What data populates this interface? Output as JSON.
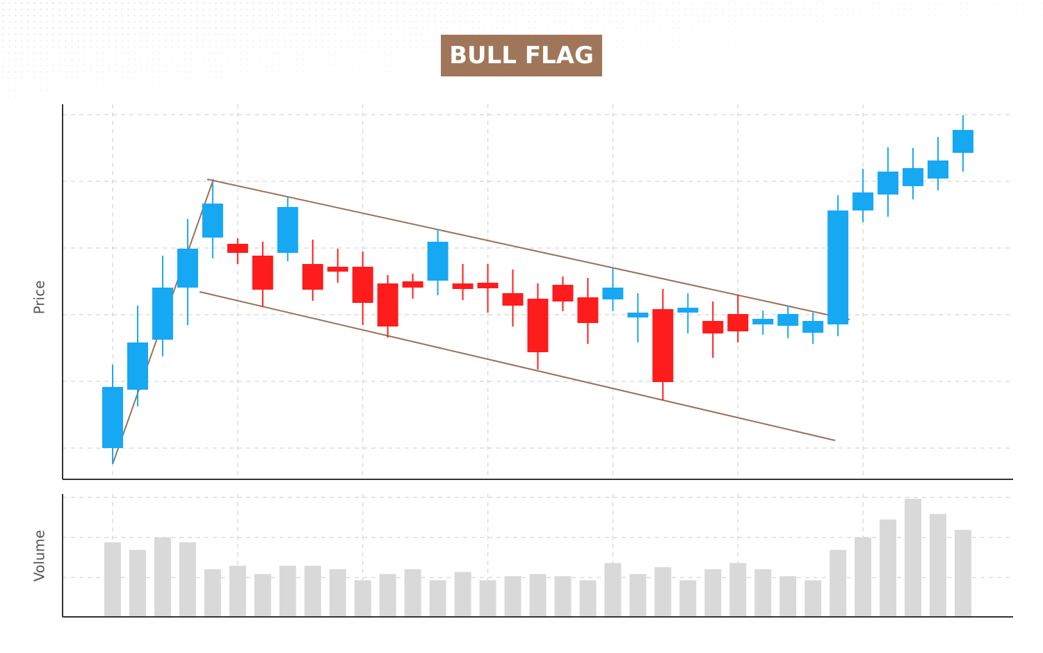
{
  "chart_data": {
    "type": "candlestick",
    "title": "BULL FLAG",
    "y_label": "Price",
    "y2_label": "Volume",
    "categories": [
      null,
      null,
      null,
      null,
      null,
      null,
      null,
      null,
      null,
      null,
      null,
      null,
      null,
      null,
      null,
      null,
      null,
      null,
      null,
      null,
      null,
      null,
      null,
      null,
      null,
      null,
      null,
      null,
      null,
      null,
      null,
      null,
      null,
      null,
      null
    ],
    "open": [
      45,
      129,
      201,
      276,
      348,
      339,
      322,
      326,
      310,
      306,
      306,
      282,
      285,
      286,
      282,
      283,
      268,
      260,
      280,
      262,
      259,
      233,
      245,
      240,
      228,
      238,
      223,
      221,
      211,
      223,
      387,
      410,
      422,
      433,
      470
    ],
    "high": [
      165,
      250,
      322,
      375,
      428,
      347,
      342,
      407,
      345,
      332,
      328,
      294,
      296,
      360,
      310,
      310,
      302,
      282,
      292,
      290,
      305,
      268,
      274,
      268,
      256,
      266,
      243,
      250,
      240,
      409,
      447,
      478,
      477,
      493,
      524
    ],
    "low": [
      22,
      105,
      177,
      222,
      318,
      310,
      248,
      314,
      257,
      283,
      222,
      204,
      260,
      265,
      258,
      240,
      220,
      158,
      242,
      195,
      242,
      197,
      114,
      210,
      175,
      197,
      208,
      203,
      195,
      206,
      370,
      378,
      403,
      416,
      443
    ],
    "close": [
      133,
      197,
      276,
      332,
      397,
      326,
      273,
      392,
      273,
      299,
      254,
      220,
      276,
      342,
      274,
      275,
      250,
      183,
      256,
      225,
      276,
      240,
      140,
      247,
      210,
      213,
      231,
      238,
      228,
      387,
      413,
      443,
      448,
      459,
      503
    ],
    "volume": [
      108,
      97,
      115,
      108,
      69,
      74,
      62,
      74,
      74,
      69,
      53,
      62,
      69,
      53,
      65,
      53,
      59,
      62,
      59,
      53,
      78,
      62,
      72,
      53,
      69,
      78,
      69,
      59,
      53,
      97,
      115,
      141,
      171,
      149,
      126
    ],
    "up_color": "#16a8f3",
    "down_color": "#fe1c1c",
    "volume_color": "#d9d9d9",
    "ylim": [
      0,
      540
    ],
    "yticks": [
      45,
      141,
      237,
      333,
      429,
      525
    ],
    "y2lim": [
      0,
      178
    ],
    "y2ticks": [
      57,
      115,
      173
    ],
    "grid": true
  }
}
